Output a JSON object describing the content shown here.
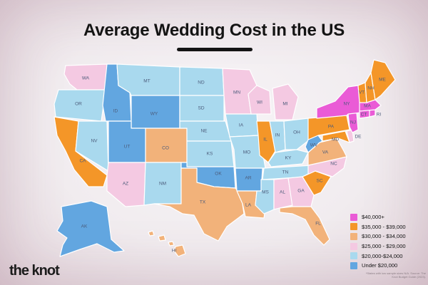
{
  "title": "Average Wedding Cost in the US",
  "logo_text": "the knot",
  "footnote": "*States with low sample sizes N/A. Source: The Knot Budget Guide (2023).",
  "palette": {
    "tier1": "#ea5bd6",
    "tier2": "#f49628",
    "tier3": "#f2b27a",
    "tier4": "#f4c9e2",
    "tier5": "#a9d9ee",
    "tier6": "#62a6e0"
  },
  "legend": [
    {
      "label": "$40,000+",
      "tier": "tier1"
    },
    {
      "label": "$35,000 - $39,000",
      "tier": "tier2"
    },
    {
      "label": "$30,000 - $34,000",
      "tier": "tier3"
    },
    {
      "label": "$25,000 - $29,000",
      "tier": "tier4"
    },
    {
      "label": "$20,000-$24,000",
      "tier": "tier5"
    },
    {
      "label": "Under $20,000",
      "tier": "tier6"
    }
  ],
  "states": {
    "WA": "tier4",
    "OR": "tier5",
    "CA": "tier2",
    "NV": "tier5",
    "ID": "tier6",
    "MT": "tier5",
    "WY": "tier6",
    "UT": "tier6",
    "AZ": "tier4",
    "CO": "tier3",
    "NM": "tier5",
    "ND": "tier5",
    "SD": "tier5",
    "NE": "tier5",
    "KS": "tier5",
    "OK": "tier6",
    "TX": "tier3",
    "MN": "tier4",
    "IA": "tier5",
    "MO": "tier5",
    "AR": "tier6",
    "LA": "tier3",
    "WI": "tier4",
    "IL": "tier2",
    "MI": "tier4",
    "IN": "tier5",
    "OH": "tier5",
    "KY": "tier5",
    "TN": "tier5",
    "MS": "tier5",
    "AL": "tier4",
    "GA": "tier4",
    "FL": "tier3",
    "SC": "tier2",
    "NC": "tier4",
    "VA": "tier3",
    "WV": "tier6",
    "PA": "tier2",
    "NY": "tier1",
    "VT": "tier2",
    "NH": "tier2",
    "ME": "tier2",
    "MA": "tier1",
    "RI": "tier1",
    "CT": "tier1",
    "NJ": "tier1",
    "DE": "tier4",
    "MD": "tier2",
    "AK": "tier6",
    "HI": "tier3"
  }
}
